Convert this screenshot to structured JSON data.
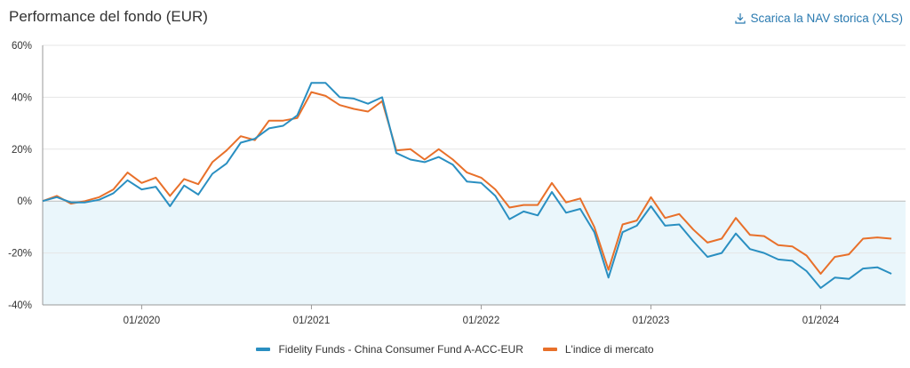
{
  "header": {
    "title": "Performance del fondo (EUR)",
    "download_label": "Scarica la NAV storica (XLS)",
    "download_icon": "download-icon"
  },
  "colors": {
    "fund": "#2a8fc1",
    "index": "#e8702a",
    "negative_fill": "#eaf6fb",
    "grid": "#e5e5e5",
    "axis": "#999999"
  },
  "chart_data": {
    "type": "line",
    "ylim": [
      -40,
      60
    ],
    "yticks": [
      "60%",
      "40%",
      "20%",
      "0%",
      "-20%",
      "-40%"
    ],
    "xticks": [
      "01/2020",
      "01/2021",
      "01/2022",
      "01/2023",
      "01/2024"
    ],
    "x_start": "2019-06",
    "x_end": "2024-07",
    "negative_region_shaded": true,
    "grid": true,
    "legend_position": "bottom",
    "x": [
      "2019-06",
      "2019-07",
      "2019-08",
      "2019-09",
      "2019-10",
      "2019-11",
      "2019-12",
      "2020-01",
      "2020-02",
      "2020-03",
      "2020-04",
      "2020-05",
      "2020-06",
      "2020-07",
      "2020-08",
      "2020-09",
      "2020-10",
      "2020-11",
      "2020-12",
      "2021-01",
      "2021-02",
      "2021-03",
      "2021-04",
      "2021-05",
      "2021-06",
      "2021-07",
      "2021-08",
      "2021-09",
      "2021-10",
      "2021-11",
      "2021-12",
      "2022-01",
      "2022-02",
      "2022-03",
      "2022-04",
      "2022-05",
      "2022-06",
      "2022-07",
      "2022-08",
      "2022-09",
      "2022-10",
      "2022-11",
      "2022-12",
      "2023-01",
      "2023-02",
      "2023-03",
      "2023-04",
      "2023-05",
      "2023-06",
      "2023-07",
      "2023-08",
      "2023-09",
      "2023-10",
      "2023-11",
      "2023-12",
      "2024-01",
      "2024-02",
      "2024-03",
      "2024-04",
      "2024-05",
      "2024-06"
    ],
    "series": [
      {
        "name": "Fidelity Funds - China Consumer Fund A-ACC-EUR",
        "color": "#2a8fc1",
        "values": [
          0,
          1.5,
          -0.5,
          -0.5,
          0.5,
          3,
          8,
          4.5,
          5.5,
          -2,
          6,
          2.5,
          10.5,
          14.5,
          22.5,
          24,
          28,
          29,
          33,
          45.5,
          45.5,
          40,
          39.5,
          37.5,
          40,
          18.5,
          16,
          15,
          17,
          14,
          7.5,
          7,
          2,
          -7,
          -4,
          -5.5,
          3.5,
          -4.5,
          -3,
          -12,
          -29.5,
          -12,
          -9.5,
          -2,
          -9.5,
          -9,
          -15.5,
          -21.5,
          -20,
          -12.5,
          -18.5,
          -20,
          -22.5,
          -23,
          -27,
          -33.5,
          -29.5,
          -30,
          -26,
          -25.5,
          -28
        ]
      },
      {
        "name": "L'indice di mercato",
        "color": "#e8702a",
        "values": [
          0,
          2,
          -1,
          0,
          1.5,
          4.5,
          11,
          7,
          9,
          2,
          8.5,
          6.5,
          15,
          19.5,
          25,
          23.5,
          31,
          31,
          32,
          42,
          40.5,
          37,
          35.5,
          34.5,
          38.5,
          19.5,
          20,
          16,
          20,
          16,
          11,
          9,
          4.5,
          -2.5,
          -1.5,
          -1.5,
          7,
          -0.5,
          1,
          -10,
          -26.5,
          -9,
          -7.5,
          1.5,
          -6.5,
          -5,
          -11,
          -16,
          -14.5,
          -6.5,
          -13,
          -13.5,
          -17,
          -17.5,
          -21,
          -28,
          -21.5,
          -20.5,
          -14.5,
          -14,
          -14.5
        ]
      }
    ]
  }
}
